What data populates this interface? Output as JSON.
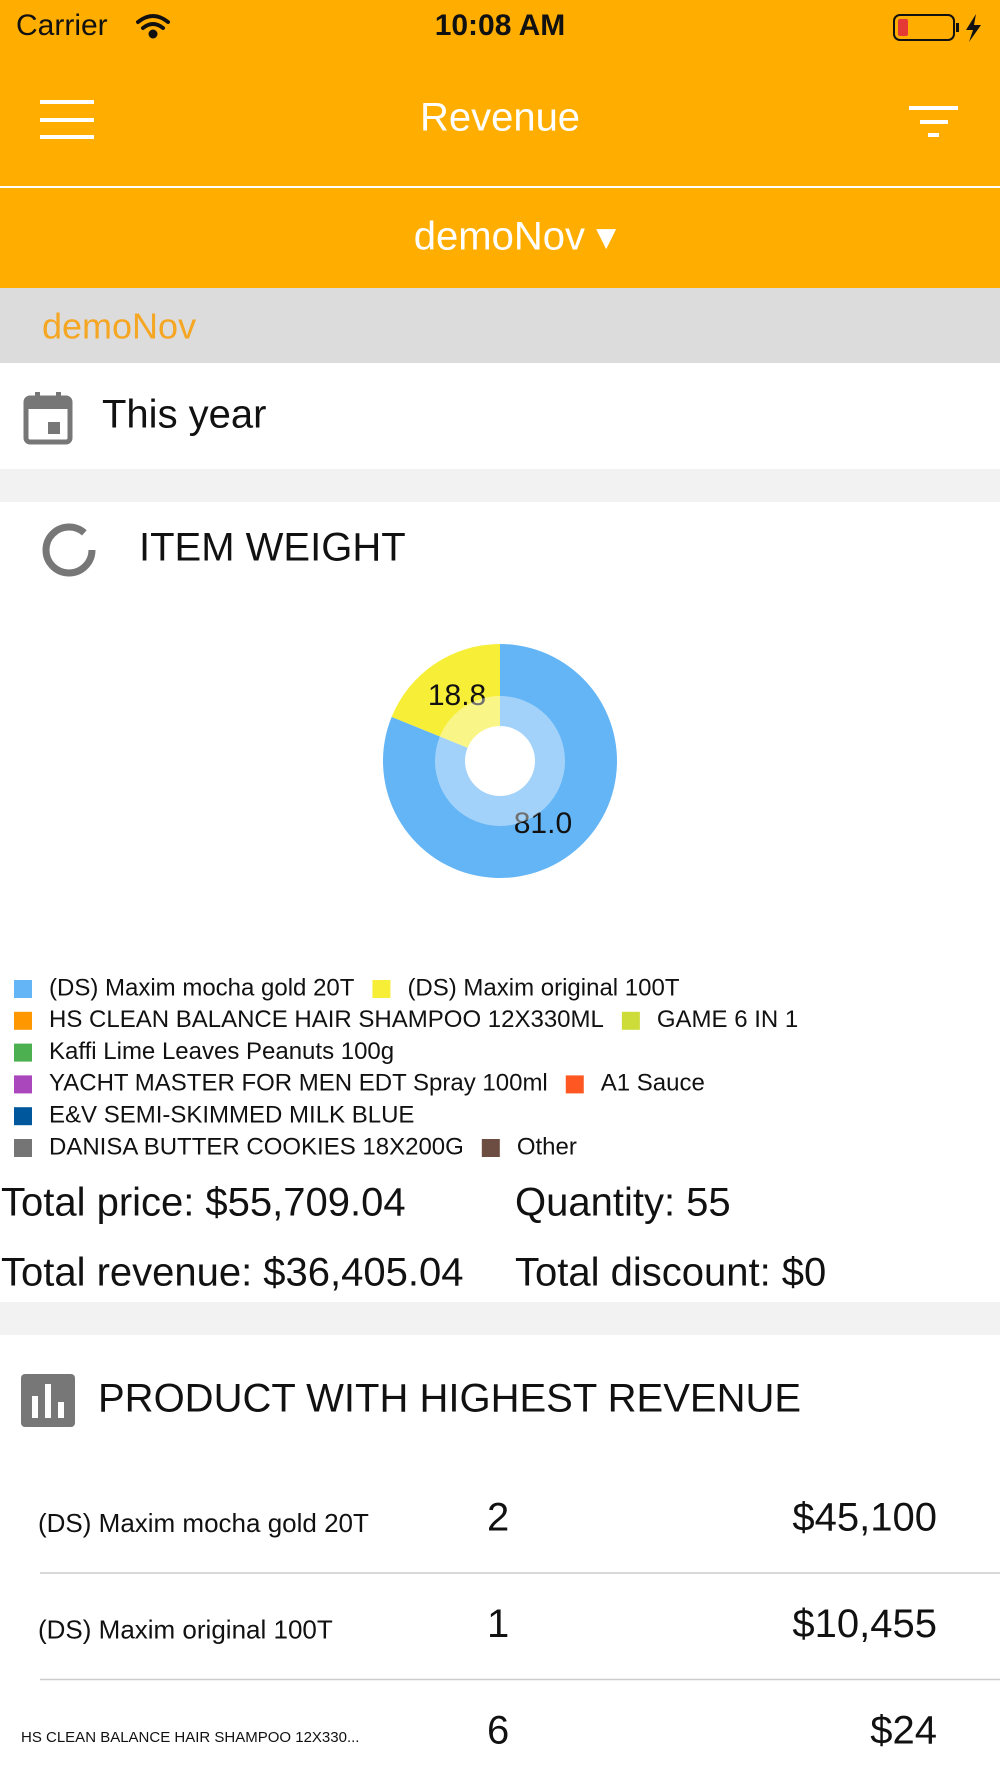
{
  "status_bar": {
    "carrier": "Carrier",
    "time": "10:08 AM"
  },
  "nav": {
    "title": "Revenue",
    "dropdown": "demoNov ▾"
  },
  "store_label": "demoNov",
  "period": "This year",
  "item_weight": {
    "heading": "ITEM WEIGHT",
    "totals": [
      [
        "Total price:",
        "$55,709.04"
      ],
      [
        "Quantity:",
        55
      ],
      [
        "Total revenue:",
        "$36,405.04"
      ],
      [
        "Total discount:",
        "$0"
      ]
    ]
  },
  "chart_data": {
    "type": "pie",
    "donut": true,
    "categories": [
      "(DS) Maxim mocha gold 20T",
      "(DS) Maxim original 100T",
      "HS CLEAN BALANCE HAIR SHAMPOO 12X330ML",
      "GAME 6 IN 1",
      "Kaffi Lime Leaves Peanuts 100g",
      "YACHT MASTER FOR MEN EDT Spray 100ml",
      "A1 Sauce",
      "E&V SEMI-SKIMMED MILK BLUE",
      "DANISA BUTTER COOKIES 18X200G",
      "Other"
    ],
    "colors": [
      "#64b5f6",
      "#f7ee38",
      "#ff9800",
      "#cddc39",
      "#4caf50",
      "#ab47bc",
      "#ff5722",
      "#01579b",
      "#757575",
      "#6d4c41"
    ],
    "values": [
      81.0,
      18.8,
      null,
      null,
      null,
      null,
      null,
      null,
      null,
      null
    ],
    "value_labels": [
      "81.0",
      "18.8",
      null,
      null,
      null,
      null,
      null,
      null,
      null,
      null
    ]
  },
  "top_products": {
    "heading": "PRODUCT WITH HIGHEST REVENUE",
    "rows": [
      [
        "(DS) Maxim mocha gold 20T",
        2,
        "$45,100"
      ],
      [
        "(DS) Maxim original 100T",
        1,
        "$10,455"
      ],
      [
        "HS CLEAN BALANCE HAIR SHAMPOO 12X330...",
        6,
        "$24"
      ]
    ]
  }
}
